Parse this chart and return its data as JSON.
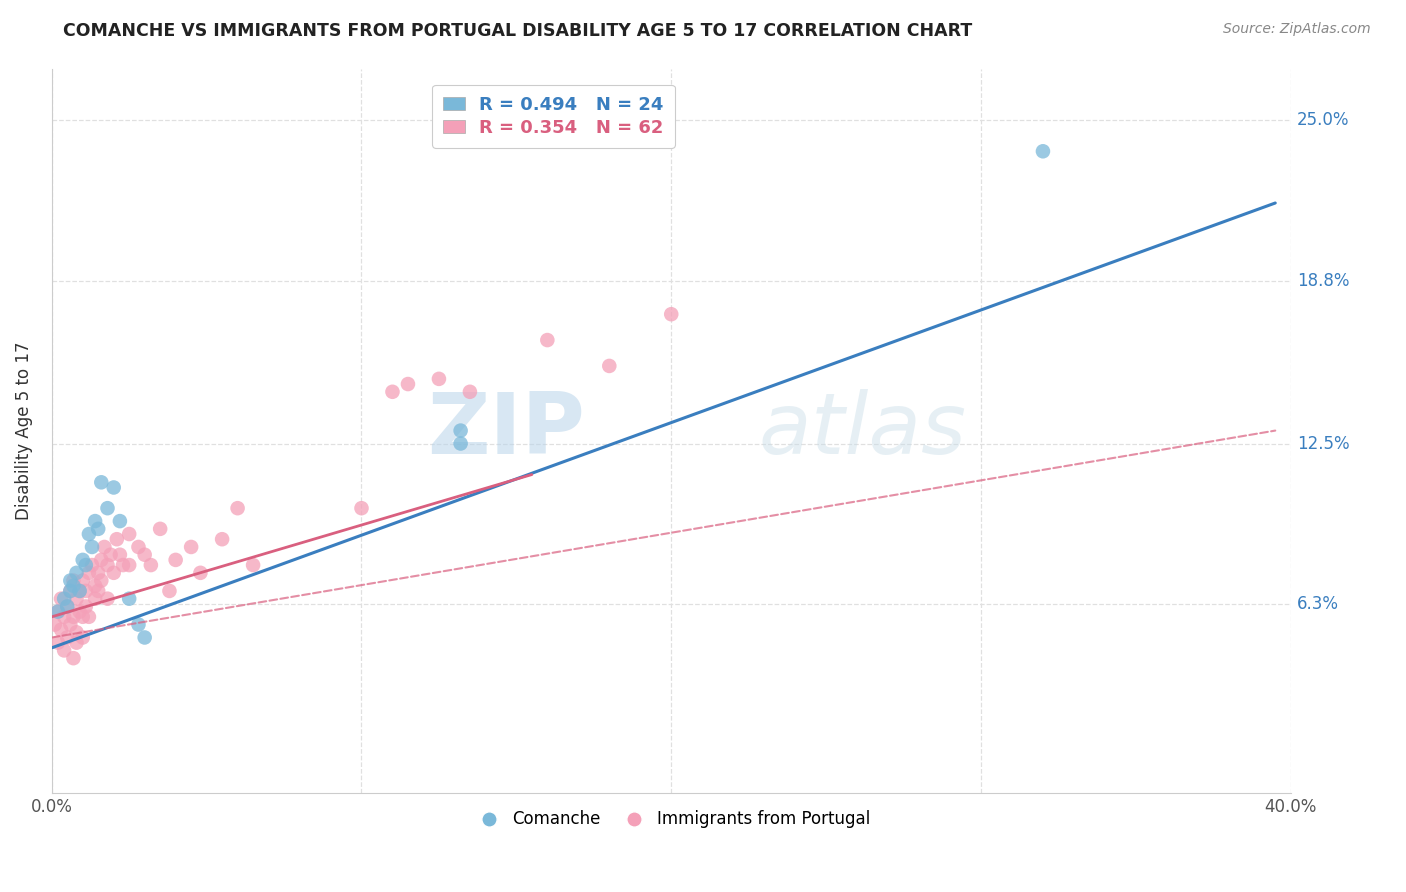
{
  "title": "COMANCHE VS IMMIGRANTS FROM PORTUGAL DISABILITY AGE 5 TO 17 CORRELATION CHART",
  "source": "Source: ZipAtlas.com",
  "ylabel": "Disability Age 5 to 17",
  "xlim": [
    0.0,
    0.4
  ],
  "ylim": [
    -0.01,
    0.27
  ],
  "ytick_positions": [
    0.063,
    0.125,
    0.188,
    0.25
  ],
  "ytick_labels": [
    "6.3%",
    "12.5%",
    "18.8%",
    "25.0%"
  ],
  "legend1_label": "R = 0.494   N = 24",
  "legend2_label": "R = 0.354   N = 62",
  "legend_xlabel1": "Comanche",
  "legend_xlabel2": "Immigrants from Portugal",
  "watermark_zip": "ZIP",
  "watermark_atlas": "atlas",
  "blue_color": "#7ab8d9",
  "pink_color": "#f4a0b8",
  "blue_line_color": "#3a7ebf",
  "pink_line_color": "#d95f7f",
  "grid_color": "#e0e0e0",
  "blue_scatter_x": [
    0.002,
    0.004,
    0.005,
    0.006,
    0.006,
    0.007,
    0.008,
    0.009,
    0.01,
    0.011,
    0.012,
    0.013,
    0.014,
    0.015,
    0.016,
    0.018,
    0.02,
    0.022,
    0.025,
    0.028,
    0.03,
    0.132,
    0.132,
    0.32
  ],
  "blue_scatter_y": [
    0.06,
    0.065,
    0.062,
    0.068,
    0.072,
    0.07,
    0.075,
    0.068,
    0.08,
    0.078,
    0.09,
    0.085,
    0.095,
    0.092,
    0.11,
    0.1,
    0.108,
    0.095,
    0.065,
    0.055,
    0.05,
    0.13,
    0.125,
    0.238
  ],
  "pink_scatter_x": [
    0.001,
    0.002,
    0.002,
    0.003,
    0.003,
    0.004,
    0.004,
    0.005,
    0.005,
    0.006,
    0.006,
    0.007,
    0.007,
    0.007,
    0.008,
    0.008,
    0.008,
    0.009,
    0.009,
    0.01,
    0.01,
    0.01,
    0.011,
    0.011,
    0.012,
    0.012,
    0.013,
    0.014,
    0.014,
    0.015,
    0.015,
    0.016,
    0.016,
    0.017,
    0.018,
    0.018,
    0.019,
    0.02,
    0.021,
    0.022,
    0.023,
    0.025,
    0.025,
    0.028,
    0.03,
    0.032,
    0.035,
    0.038,
    0.04,
    0.045,
    0.048,
    0.055,
    0.06,
    0.065,
    0.1,
    0.11,
    0.115,
    0.125,
    0.135,
    0.16,
    0.18,
    0.2
  ],
  "pink_scatter_y": [
    0.055,
    0.06,
    0.048,
    0.053,
    0.065,
    0.058,
    0.045,
    0.062,
    0.05,
    0.068,
    0.055,
    0.072,
    0.058,
    0.042,
    0.065,
    0.052,
    0.048,
    0.068,
    0.06,
    0.072,
    0.058,
    0.05,
    0.068,
    0.062,
    0.075,
    0.058,
    0.078,
    0.065,
    0.07,
    0.075,
    0.068,
    0.08,
    0.072,
    0.085,
    0.078,
    0.065,
    0.082,
    0.075,
    0.088,
    0.082,
    0.078,
    0.09,
    0.078,
    0.085,
    0.082,
    0.078,
    0.092,
    0.068,
    0.08,
    0.085,
    0.075,
    0.088,
    0.1,
    0.078,
    0.1,
    0.145,
    0.148,
    0.15,
    0.145,
    0.165,
    0.155,
    0.175
  ],
  "blue_trend_x": [
    0.0,
    0.395
  ],
  "blue_trend_y": [
    0.046,
    0.218
  ],
  "pink_solid_trend_x": [
    0.0,
    0.155
  ],
  "pink_solid_trend_y": [
    0.058,
    0.113
  ],
  "pink_dashed_trend_x": [
    0.0,
    0.395
  ],
  "pink_dashed_trend_y": [
    0.05,
    0.13
  ]
}
